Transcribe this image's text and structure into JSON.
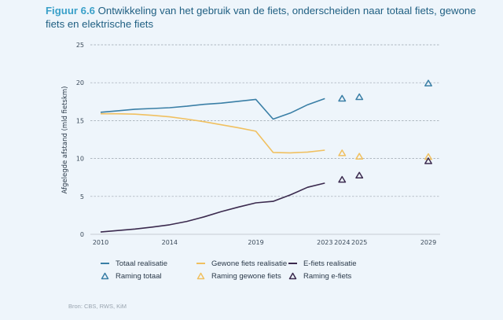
{
  "title": {
    "figure_label": "Figuur 6.6",
    "text": " Ontwikkeling van het gebruik van de fiets, onderscheiden naar totaal fiets, gewone fiets en elektrische fiets"
  },
  "source": "Bron: CBS, RWS, KiM",
  "colors": {
    "totaal": "#3a7fa6",
    "gewone": "#f0c060",
    "efiets": "#3b2a4e",
    "grid": "#9aa3ad",
    "axis": "#c5ccd3"
  },
  "legend": [
    {
      "label": "Totaal realisatie",
      "type": "line",
      "series": "totaal"
    },
    {
      "label": "Gewone fiets realisatie",
      "type": "line",
      "series": "gewone"
    },
    {
      "label": "E-fiets realisatie",
      "type": "line",
      "series": "efiets"
    },
    {
      "label": "Raming totaal",
      "type": "triangle",
      "series": "totaal"
    },
    {
      "label": "Raming gewone fiets",
      "type": "triangle",
      "series": "gewone"
    },
    {
      "label": "Raming e-fiets",
      "type": "triangle",
      "series": "efiets"
    }
  ],
  "chart_data": {
    "type": "line",
    "title": "Ontwikkeling van het gebruik van de fiets, onderscheiden naar totaal fiets, gewone fiets en elektrische fiets",
    "xlabel": "",
    "ylabel": "Afgelegde afstand (mld fietskm)",
    "xlim": [
      2010,
      2029
    ],
    "ylim": [
      0,
      25
    ],
    "x_ticks": [
      2010,
      2014,
      2019,
      2023,
      2024,
      2025,
      2029
    ],
    "y_ticks": [
      0,
      5,
      10,
      15,
      20,
      25
    ],
    "grid": "horizontal-dashed",
    "legend_position": "bottom",
    "series": [
      {
        "name": "Totaal realisatie",
        "key": "totaal",
        "kind": "line",
        "x": [
          2010,
          2011,
          2012,
          2013,
          2014,
          2015,
          2016,
          2017,
          2018,
          2019,
          2020,
          2021,
          2022,
          2023
        ],
        "values": [
          16.1,
          16.3,
          16.5,
          16.6,
          16.7,
          16.9,
          17.15,
          17.3,
          17.55,
          17.8,
          15.2,
          16.0,
          17.1,
          17.9
        ]
      },
      {
        "name": "Gewone fiets realisatie",
        "key": "gewone",
        "kind": "line",
        "x": [
          2010,
          2011,
          2012,
          2013,
          2014,
          2015,
          2016,
          2017,
          2018,
          2019,
          2020,
          2021,
          2022,
          2023
        ],
        "values": [
          15.9,
          15.9,
          15.85,
          15.7,
          15.5,
          15.2,
          14.85,
          14.45,
          14.05,
          13.6,
          10.8,
          10.75,
          10.85,
          11.1
        ]
      },
      {
        "name": "E-fiets realisatie",
        "key": "efiets",
        "kind": "line",
        "x": [
          2010,
          2011,
          2012,
          2013,
          2014,
          2015,
          2016,
          2017,
          2018,
          2019,
          2020,
          2021,
          2022,
          2023
        ],
        "values": [
          0.3,
          0.5,
          0.7,
          0.95,
          1.25,
          1.7,
          2.3,
          3.0,
          3.6,
          4.15,
          4.35,
          5.2,
          6.2,
          6.75
        ]
      },
      {
        "name": "Raming totaal",
        "key": "totaal",
        "kind": "triangle",
        "x": [
          2024,
          2025,
          2029
        ],
        "values": [
          17.9,
          18.1,
          19.9
        ]
      },
      {
        "name": "Raming gewone fiets",
        "key": "gewone",
        "kind": "triangle",
        "x": [
          2024,
          2025,
          2029
        ],
        "values": [
          10.7,
          10.25,
          10.2
        ]
      },
      {
        "name": "Raming e-fiets",
        "key": "efiets",
        "kind": "triangle",
        "x": [
          2024,
          2025,
          2029
        ],
        "values": [
          7.2,
          7.75,
          9.65
        ]
      }
    ]
  }
}
